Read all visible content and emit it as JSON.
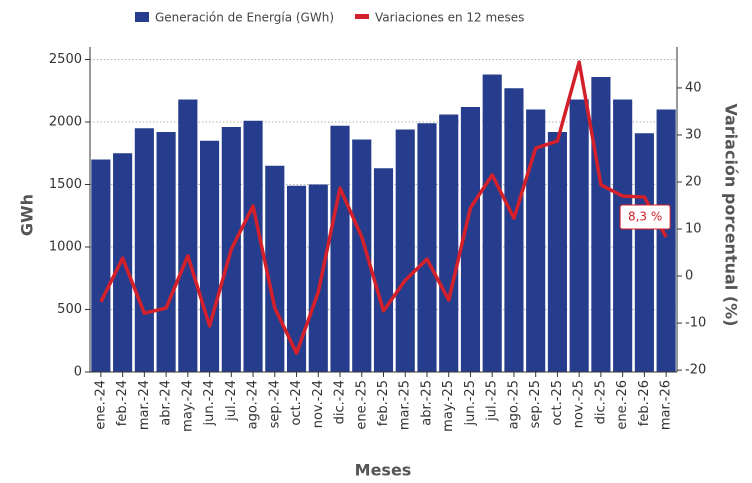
{
  "chart_data": {
    "type": "combo",
    "x_label": "Meses",
    "y_label": "GWh",
    "y2_label": "Variación porcentual (%)",
    "categories": [
      "ene.-24",
      "feb.-24",
      "mar.-24",
      "abr.-24",
      "may.-24",
      "jun.-24",
      "jul.-24",
      "ago.-24",
      "sep.-24",
      "oct.-24",
      "nov.-24",
      "dic.-24",
      "ene.-25",
      "feb.-25",
      "mar.-25",
      "abr.-25",
      "may.-25",
      "jun.-25",
      "jul.-25",
      "ago.-25",
      "sep.-25",
      "oct.-25",
      "nov.-25",
      "dic.-25",
      "ene.-26",
      "feb.-26",
      "mar.-26"
    ],
    "series": [
      {
        "name": "Generación de Energía (GWh)",
        "type": "bar",
        "color": "#253d8c",
        "values": [
          1700,
          1750,
          1950,
          1920,
          2180,
          1850,
          1960,
          2010,
          1650,
          1490,
          1500,
          1970,
          1860,
          1630,
          1940,
          1990,
          2060,
          2120,
          2380,
          2270,
          2100,
          1920,
          2180,
          2360,
          2180,
          1910,
          2100
        ]
      },
      {
        "name": "Variaciones en 12 meses",
        "type": "line",
        "axis": "y2",
        "color": "#d4202a",
        "values": [
          -5.5,
          3.8,
          -7.9,
          -6.8,
          4.3,
          -10.6,
          5.7,
          14.9,
          -6.8,
          -16.4,
          -3.4,
          18.7,
          8.3,
          -7.4,
          -0.9,
          3.6,
          -5.1,
          14.5,
          21.5,
          12.3,
          27.2,
          28.7,
          45.5,
          19.4,
          17.0,
          16.8,
          8.3
        ],
        "value_labels": [
          null,
          null,
          null,
          null,
          null,
          null,
          null,
          null,
          null,
          null,
          null,
          null,
          null,
          null,
          null,
          null,
          null,
          null,
          null,
          null,
          null,
          null,
          null,
          null,
          null,
          null,
          "8,3 %"
        ]
      }
    ],
    "ylim": [
      0,
      2600
    ],
    "yticks": [
      0,
      500,
      1000,
      1500,
      2000,
      2500
    ],
    "y2lim": [
      -20.4,
      48.7
    ],
    "y2ticks": [
      -20,
      -10,
      0,
      10,
      20,
      30,
      40
    ],
    "grid": true
  }
}
